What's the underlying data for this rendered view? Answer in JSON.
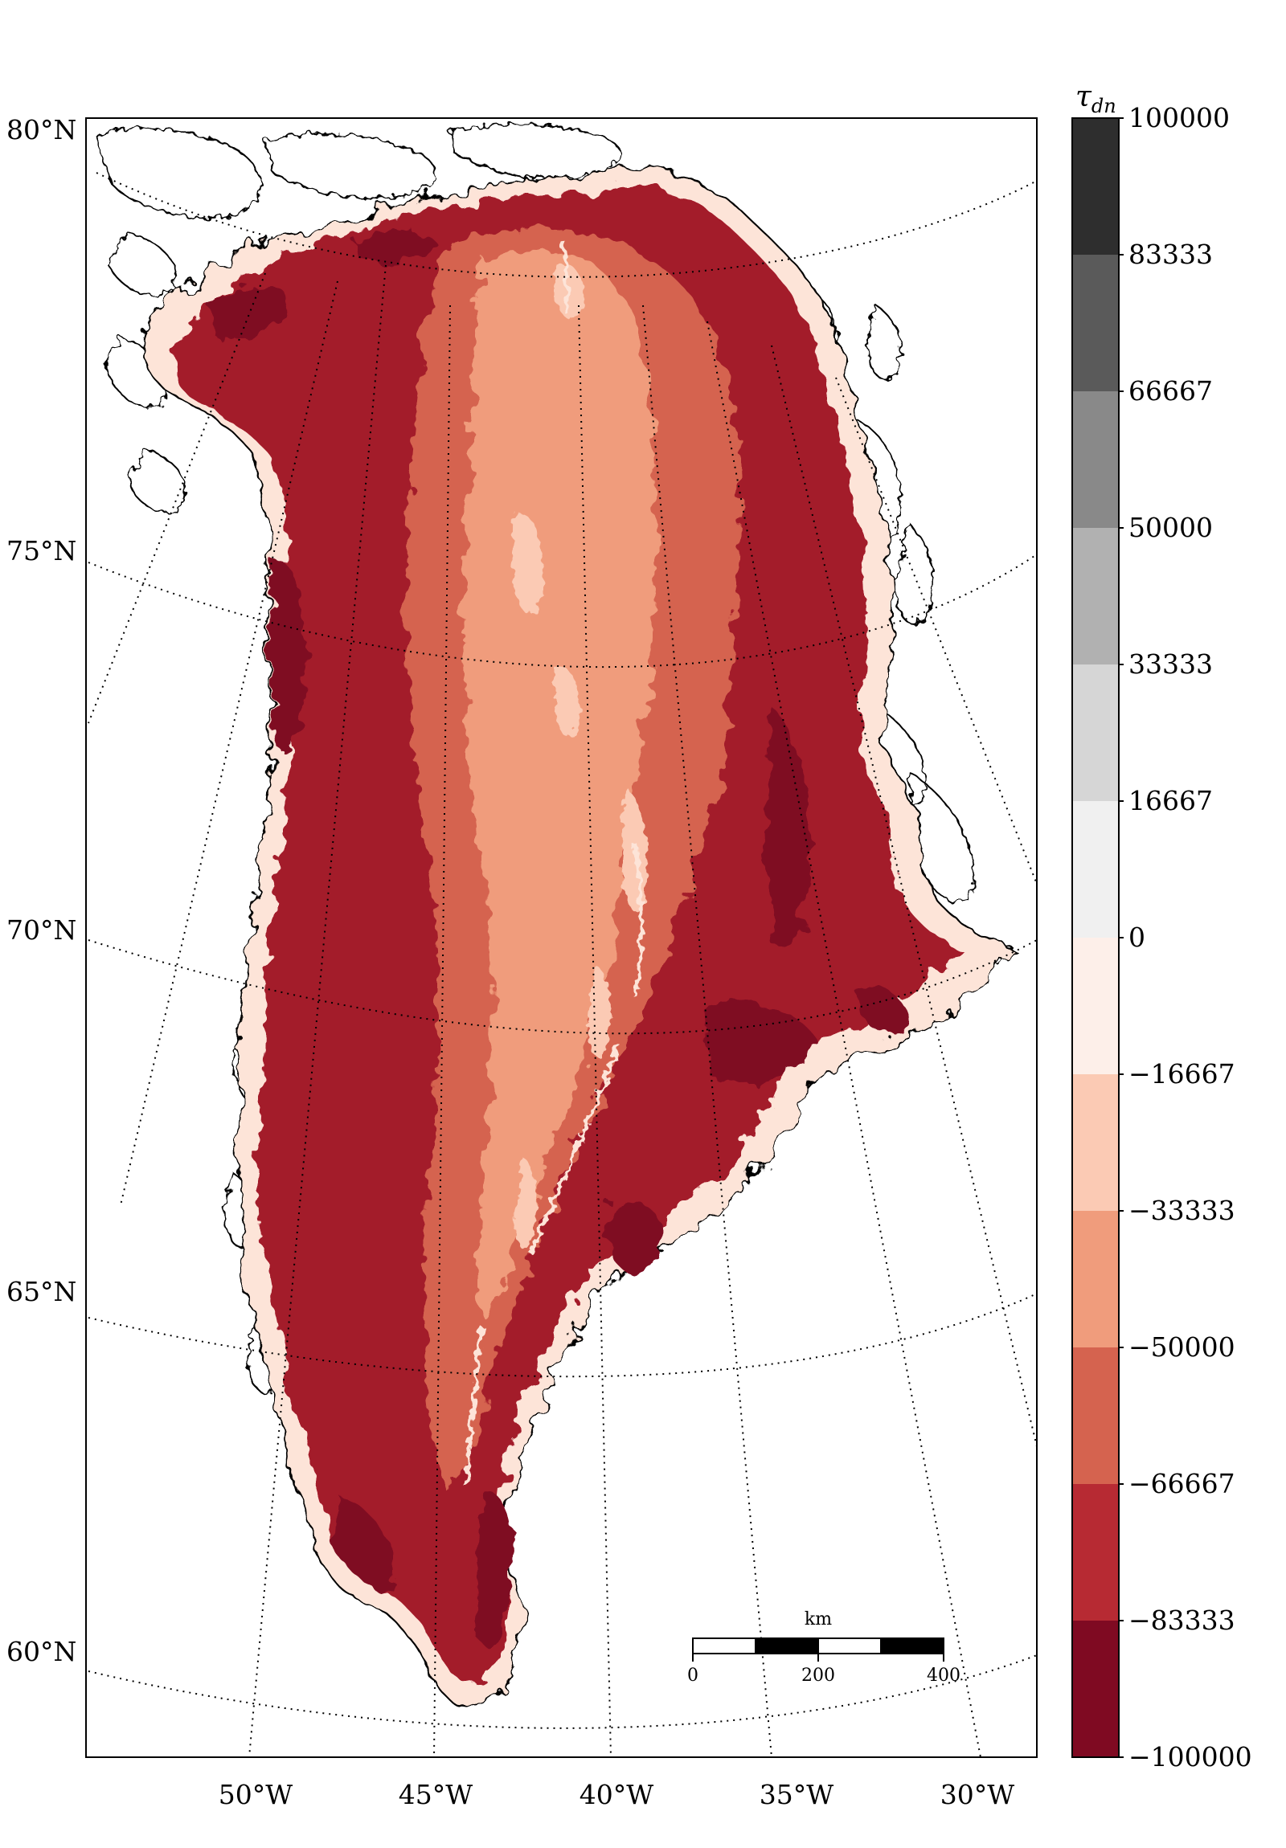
{
  "map": {
    "region": "Greenland",
    "projection": "polar stereographic",
    "graticule_style": "dotted"
  },
  "latitude_labels": [
    "80°N",
    "75°N",
    "70°N",
    "65°N",
    "60°N"
  ],
  "longitude_labels": [
    "50°W",
    "45°W",
    "40°W",
    "35°W",
    "30°W"
  ],
  "colorbar": {
    "title": "τ",
    "title_subscript": "dn",
    "tick_labels": [
      "100000",
      "83333",
      "66667",
      "50000",
      "33333",
      "16667",
      "0",
      "−16667",
      "−33333",
      "−50000",
      "−66667",
      "−83333",
      "−100000"
    ],
    "levels": [
      100000,
      83333,
      66667,
      50000,
      33333,
      16667,
      0,
      -16667,
      -33333,
      -50000,
      -66667,
      -83333,
      -100000
    ],
    "colors": [
      "#2e2e2e",
      "#5a5a5a",
      "#898989",
      "#b1b1b1",
      "#d6d6d6",
      "#f0f0f0",
      "#fdefe9",
      "#fbcab4",
      "#f09c7c",
      "#d5634f",
      "#b72a33",
      "#7f0a22"
    ]
  },
  "scale_bar": {
    "unit": "km",
    "tick_labels": [
      "0",
      "200",
      "400"
    ]
  }
}
